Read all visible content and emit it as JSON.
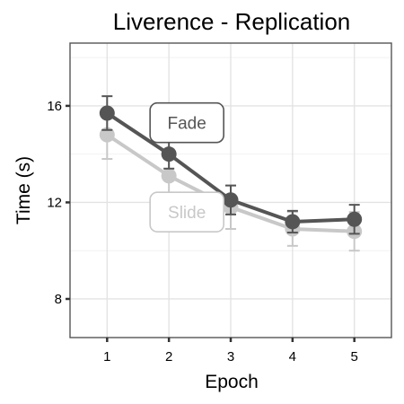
{
  "chart_data": {
    "type": "line",
    "title": "Liverence - Replication",
    "xlabel": "Epoch",
    "ylabel": "Time (s)",
    "x": [
      1,
      2,
      3,
      4,
      5
    ],
    "xlim": [
      0.4,
      5.6
    ],
    "ylim": [
      6.4,
      18.6
    ],
    "yticks": [
      8,
      12,
      16
    ],
    "grid": true,
    "series": [
      {
        "name": "Fade",
        "color": "#555555",
        "values": [
          15.7,
          14.0,
          12.1,
          11.2,
          11.3
        ],
        "error": [
          0.7,
          0.6,
          0.6,
          0.45,
          0.6
        ]
      },
      {
        "name": "Slide",
        "color": "#c8c8c8",
        "values": [
          14.8,
          13.1,
          11.8,
          10.9,
          10.8
        ],
        "error": [
          1.0,
          0.7,
          0.9,
          0.7,
          0.8
        ]
      }
    ],
    "annotations": [
      {
        "text": "Fade",
        "series": "Fade",
        "x": 2.0,
        "y": 15.3
      },
      {
        "text": "Slide",
        "series": "Slide",
        "x": 2.0,
        "y": 11.6
      }
    ]
  }
}
